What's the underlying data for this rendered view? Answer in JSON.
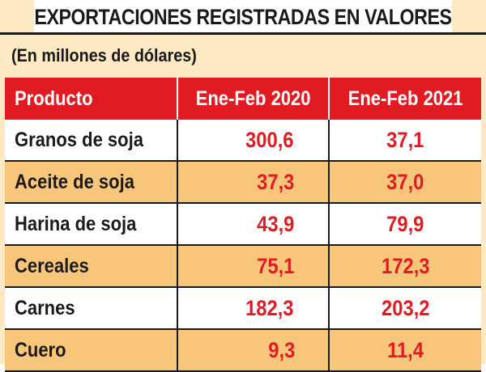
{
  "chart_data": {
    "type": "table",
    "title": "EXPORTACIONES REGISTRADAS EN VALORES",
    "subtitle": "(En millones de dólares)",
    "columns": [
      "Producto",
      "Ene-Feb 2020",
      "Ene-Feb 2021"
    ],
    "rows": [
      {
        "producto": "Granos de soja",
        "v2020": "300,6",
        "v2021": "37,1"
      },
      {
        "producto": "Aceite de soja",
        "v2020": "37,3",
        "v2021": "37,0"
      },
      {
        "producto": "Harina de soja",
        "v2020": "43,9",
        "v2021": "79,9"
      },
      {
        "producto": "Cereales",
        "v2020": "75,1",
        "v2021": "172,3"
      },
      {
        "producto": "Carnes",
        "v2020": "182,3",
        "v2021": "203,2"
      },
      {
        "producto": "Cuero",
        "v2020": "9,3",
        "v2021": "11,4"
      }
    ],
    "series": [
      {
        "name": "Ene-Feb 2020",
        "values": [
          300.6,
          37.3,
          43.9,
          75.1,
          182.3,
          9.3
        ]
      },
      {
        "name": "Ene-Feb 2021",
        "values": [
          37.1,
          37.0,
          79.9,
          172.3,
          203.2,
          11.4
        ]
      }
    ],
    "categories": [
      "Granos de soja",
      "Aceite de soja",
      "Harina de soja",
      "Cereales",
      "Carnes",
      "Cuero"
    ]
  },
  "colors": {
    "header_bg": "#e11b22",
    "value_text": "#e11b22",
    "row_alt_bg": "#f8c67a",
    "row_bg": "#ffffff"
  }
}
